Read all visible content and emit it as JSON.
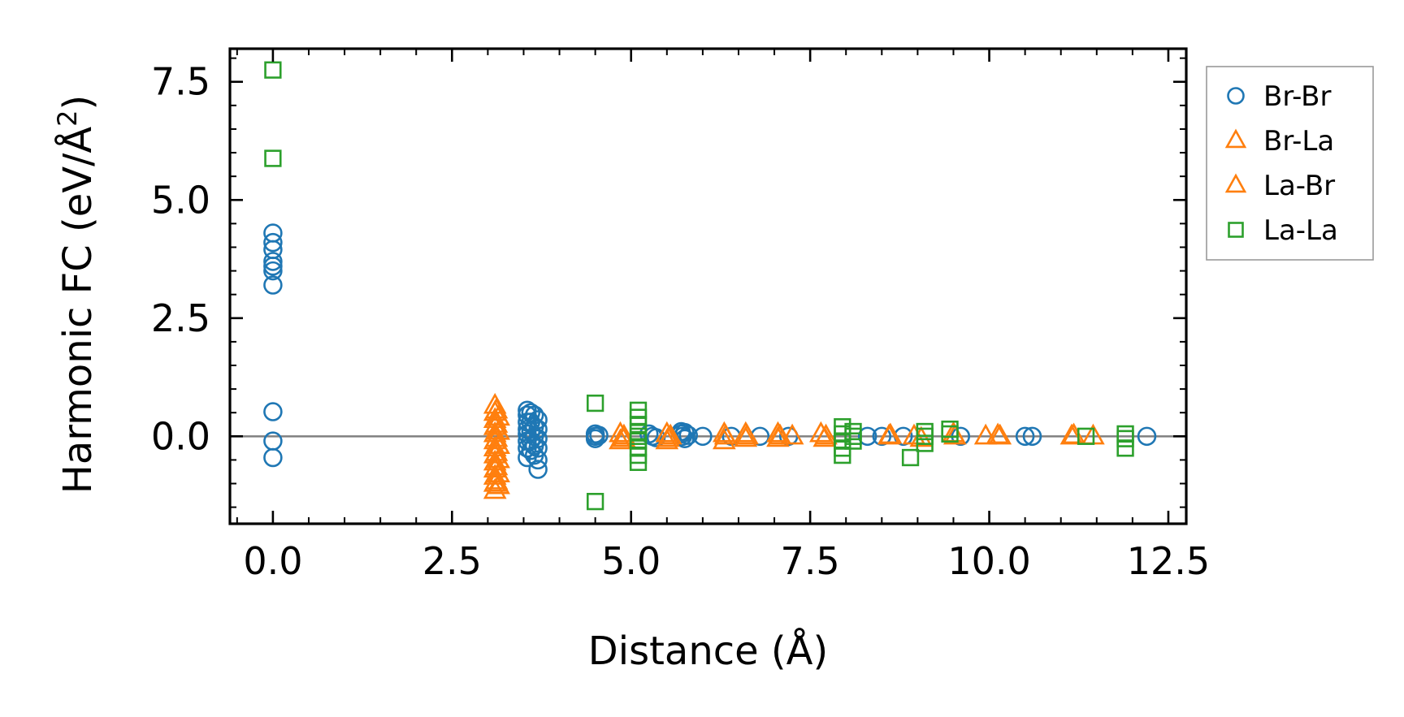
{
  "chart_data": {
    "type": "scatter",
    "title": "",
    "xlabel": "Distance (Å)",
    "ylabel_main": "Harmonic FC (eV/Å",
    "ylabel_sup": "2",
    "ylabel_close": ")",
    "xlim": [
      -0.6,
      12.75
    ],
    "ylim": [
      -1.85,
      8.2
    ],
    "x_ticks": [
      0.0,
      2.5,
      5.0,
      7.5,
      10.0,
      12.5
    ],
    "x_tick_labels": [
      "0.0",
      "2.5",
      "5.0",
      "7.5",
      "10.0",
      "12.5"
    ],
    "y_ticks": [
      0.0,
      2.5,
      5.0,
      7.5
    ],
    "y_tick_labels": [
      "0.0",
      "2.5",
      "5.0",
      "7.5"
    ],
    "grid": false,
    "zero_line": true,
    "legend_position": "outside-right",
    "colors": {
      "blue": "#1f77b4",
      "orange": "#ff7f0e",
      "green": "#2ca02c",
      "zero_line": "#808080"
    },
    "series": [
      {
        "name": "Br-Br",
        "marker": "circle",
        "color": "#1f77b4",
        "points": [
          [
            0.0,
            4.3
          ],
          [
            0.0,
            4.1
          ],
          [
            0.0,
            3.95
          ],
          [
            0.0,
            3.7
          ],
          [
            0.0,
            3.6
          ],
          [
            0.0,
            3.5
          ],
          [
            0.0,
            3.2
          ],
          [
            0.0,
            0.52
          ],
          [
            0.0,
            -0.1
          ],
          [
            0.0,
            -0.45
          ],
          [
            3.55,
            0.55
          ],
          [
            3.55,
            0.45
          ],
          [
            3.55,
            0.3
          ],
          [
            3.55,
            0.15
          ],
          [
            3.55,
            0.05
          ],
          [
            3.55,
            -0.1
          ],
          [
            3.55,
            -0.25
          ],
          [
            3.55,
            -0.45
          ],
          [
            3.6,
            0.5
          ],
          [
            3.6,
            0.3
          ],
          [
            3.6,
            0.1
          ],
          [
            3.6,
            -0.1
          ],
          [
            3.6,
            -0.3
          ],
          [
            3.65,
            0.45
          ],
          [
            3.65,
            0.2
          ],
          [
            3.65,
            0.0
          ],
          [
            3.65,
            -0.2
          ],
          [
            3.65,
            -0.4
          ],
          [
            3.7,
            0.35
          ],
          [
            3.7,
            0.15
          ],
          [
            3.7,
            -0.05
          ],
          [
            3.7,
            -0.25
          ],
          [
            3.7,
            -0.5
          ],
          [
            3.7,
            -0.7
          ],
          [
            4.5,
            0.05
          ],
          [
            4.5,
            0.0
          ],
          [
            4.5,
            -0.05
          ],
          [
            4.55,
            0.02
          ],
          [
            5.25,
            0.05
          ],
          [
            5.3,
            0.0
          ],
          [
            5.35,
            -0.03
          ],
          [
            5.7,
            0.1
          ],
          [
            5.7,
            0.05
          ],
          [
            5.72,
            0.0
          ],
          [
            5.75,
            0.08
          ],
          [
            5.75,
            -0.05
          ],
          [
            5.8,
            0.02
          ],
          [
            6.0,
            0.0
          ],
          [
            6.4,
            0.0
          ],
          [
            6.8,
            0.0
          ],
          [
            7.2,
            0.0
          ],
          [
            8.3,
            0.0
          ],
          [
            8.5,
            0.0
          ],
          [
            8.8,
            0.0
          ],
          [
            9.6,
            0.0
          ],
          [
            10.5,
            0.0
          ],
          [
            10.6,
            0.0
          ],
          [
            12.2,
            0.0
          ]
        ]
      },
      {
        "name": "Br-La",
        "marker": "triangle",
        "color": "#ff7f0e",
        "points": [
          [
            3.1,
            0.65
          ],
          [
            3.1,
            0.5
          ],
          [
            3.1,
            0.35
          ],
          [
            3.1,
            0.2
          ],
          [
            3.1,
            0.05
          ],
          [
            3.1,
            -0.1
          ],
          [
            3.1,
            -0.25
          ],
          [
            3.1,
            -0.4
          ],
          [
            3.1,
            -0.55
          ],
          [
            3.1,
            -0.7
          ],
          [
            3.1,
            -0.85
          ],
          [
            3.1,
            -1.0
          ],
          [
            3.1,
            -1.15
          ],
          [
            3.15,
            0.4
          ],
          [
            3.15,
            0.1
          ],
          [
            3.15,
            -0.2
          ],
          [
            3.15,
            -0.5
          ],
          [
            3.15,
            -0.8
          ],
          [
            3.15,
            -1.05
          ],
          [
            4.85,
            0.05
          ],
          [
            4.85,
            -0.1
          ],
          [
            4.9,
            0.0
          ],
          [
            5.5,
            0.05
          ],
          [
            5.5,
            -0.1
          ],
          [
            5.55,
            0.0
          ],
          [
            6.3,
            0.05
          ],
          [
            6.3,
            -0.1
          ],
          [
            6.6,
            0.05
          ],
          [
            6.6,
            -0.05
          ],
          [
            7.05,
            0.05
          ],
          [
            7.05,
            -0.05
          ],
          [
            7.25,
            0.0
          ],
          [
            7.65,
            0.05
          ],
          [
            7.7,
            -0.05
          ],
          [
            8.6,
            0.0
          ],
          [
            8.95,
            0.0
          ],
          [
            9.05,
            -0.05
          ],
          [
            9.5,
            0.05
          ],
          [
            9.95,
            0.0
          ],
          [
            10.15,
            0.0
          ],
          [
            11.15,
            0.0
          ],
          [
            11.45,
            0.0
          ]
        ]
      },
      {
        "name": "La-Br",
        "marker": "triangle",
        "color": "#ff7f0e",
        "points": [
          [
            3.12,
            0.55
          ],
          [
            3.12,
            0.25
          ],
          [
            3.12,
            -0.05
          ],
          [
            3.12,
            -0.35
          ],
          [
            3.12,
            -0.65
          ],
          [
            3.12,
            -0.95
          ],
          [
            4.9,
            -0.05
          ],
          [
            5.52,
            -0.05
          ],
          [
            6.32,
            0.0
          ],
          [
            6.62,
            0.0
          ],
          [
            7.08,
            0.0
          ],
          [
            7.72,
            0.0
          ],
          [
            8.62,
            0.02
          ],
          [
            9.52,
            0.0
          ],
          [
            10.12,
            0.02
          ],
          [
            11.18,
            0.02
          ]
        ]
      },
      {
        "name": "La-La",
        "marker": "square",
        "color": "#2ca02c",
        "points": [
          [
            0.0,
            7.75
          ],
          [
            0.0,
            5.88
          ],
          [
            4.5,
            0.7
          ],
          [
            4.5,
            -1.38
          ],
          [
            5.1,
            0.55
          ],
          [
            5.1,
            0.4
          ],
          [
            5.1,
            0.25
          ],
          [
            5.1,
            0.1
          ],
          [
            5.1,
            0.0
          ],
          [
            5.1,
            -0.1
          ],
          [
            5.1,
            -0.25
          ],
          [
            5.1,
            -0.4
          ],
          [
            5.1,
            -0.55
          ],
          [
            7.95,
            0.2
          ],
          [
            7.95,
            0.05
          ],
          [
            7.95,
            -0.1
          ],
          [
            7.95,
            -0.25
          ],
          [
            7.95,
            -0.4
          ],
          [
            8.1,
            0.1
          ],
          [
            8.1,
            0.0
          ],
          [
            8.1,
            -0.1
          ],
          [
            8.9,
            -0.45
          ],
          [
            9.1,
            0.1
          ],
          [
            9.1,
            0.0
          ],
          [
            9.1,
            -0.15
          ],
          [
            9.45,
            0.15
          ],
          [
            9.45,
            0.05
          ],
          [
            11.35,
            0.0
          ],
          [
            11.9,
            0.05
          ],
          [
            11.9,
            -0.05
          ],
          [
            11.9,
            -0.25
          ]
        ]
      }
    ]
  }
}
